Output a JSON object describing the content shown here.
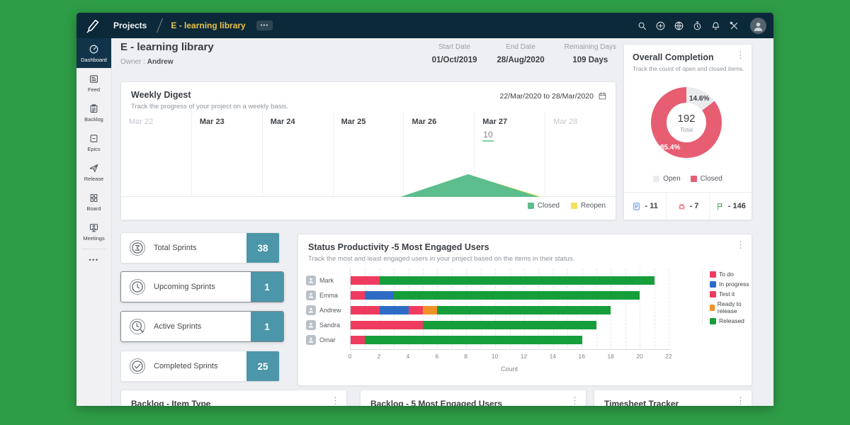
{
  "topbar": {
    "nav_app_label": "Projects",
    "project_name": "E - learning library",
    "more_label": "•••",
    "icons": [
      "search",
      "add",
      "globe",
      "timer",
      "bell",
      "tools"
    ]
  },
  "sidebar": {
    "items": [
      {
        "label": "Dashboard",
        "icon": "dashboard",
        "active": true
      },
      {
        "label": "Feed",
        "icon": "feed",
        "active": false
      },
      {
        "label": "Backlog",
        "icon": "backlog",
        "active": false
      },
      {
        "label": "Epics",
        "icon": "epics",
        "active": false
      },
      {
        "label": "Release",
        "icon": "release",
        "active": false
      },
      {
        "label": "Board",
        "icon": "board",
        "active": false
      },
      {
        "label": "Meetings",
        "icon": "meetings",
        "active": false
      }
    ],
    "more": "•••"
  },
  "project_header": {
    "title": "E - learning library",
    "owner_label": "Owner :",
    "owner": "Andrew",
    "start_date_label": "Start Date",
    "start_date": "01/Oct/2019",
    "end_date_label": "End Date",
    "end_date": "28/Aug/2020",
    "remaining_label": "Remaining Days",
    "remaining": "109 Days"
  },
  "weekly_digest": {
    "title": "Weekly Digest",
    "subtitle": "Track the progress of your project on a weekly basis.",
    "range": "22/Mar/2020 to 28/Mar/2020",
    "days": [
      {
        "label": "Mar 22",
        "muted": true,
        "value": ""
      },
      {
        "label": "Mar 23",
        "muted": false,
        "value": ""
      },
      {
        "label": "Mar 24",
        "muted": false,
        "value": ""
      },
      {
        "label": "Mar 25",
        "muted": false,
        "value": ""
      },
      {
        "label": "Mar 26",
        "muted": false,
        "value": ""
      },
      {
        "label": "Mar 27",
        "muted": false,
        "value": "10"
      },
      {
        "label": "Mar 28",
        "muted": true,
        "value": ""
      }
    ],
    "legend": [
      {
        "label": "Closed",
        "color": "#5cbd8d"
      },
      {
        "label": "Reopen",
        "color": "#efe15d"
      }
    ]
  },
  "overall_completion": {
    "title": "Overall Completion",
    "subtitle": "Track the count of open and closed items.",
    "total": "192",
    "total_label": "Total",
    "open_pct_label": "14.6%",
    "closed_pct_label": "85.4%",
    "legend": [
      {
        "label": "Open",
        "color": "#e9ebee"
      },
      {
        "label": "Closed",
        "color": "#e75d72"
      }
    ],
    "footer": [
      {
        "icon": "story",
        "text": "- 11",
        "color": "#5b8ad6"
      },
      {
        "icon": "bug",
        "text": "- 7",
        "color": "#e0525e"
      },
      {
        "icon": "flag",
        "text": "- 146",
        "color": "#43a34d"
      }
    ]
  },
  "sprints": {
    "accent": "#4b96a8",
    "cards": [
      {
        "label": "Total Sprints",
        "value": "38",
        "icon": "sigma",
        "selected": false
      },
      {
        "label": "Upcoming Sprints",
        "value": "1",
        "icon": "clock",
        "selected": true
      },
      {
        "label": "Active Sprints",
        "value": "1",
        "icon": "clockedit",
        "selected": true
      },
      {
        "label": "Completed Sprints",
        "value": "25",
        "icon": "check",
        "selected": false
      }
    ]
  },
  "status_productivity": {
    "title": "Status Productivity -5 Most Engaged Users",
    "subtitle": "Track the most and least engaged users in your project based on the items in their status."
  },
  "bottom_cards": [
    {
      "title": "Backlog - Item Type"
    },
    {
      "title": "Backlog - 5 Most Engaged Users"
    },
    {
      "title": "Timesheet Tracker"
    }
  ],
  "chart_data": [
    {
      "name": "weekly_digest",
      "type": "area",
      "title": "Weekly Digest",
      "x": [
        "Mar 22",
        "Mar 23",
        "Mar 24",
        "Mar 25",
        "Mar 26",
        "Mar 27",
        "Mar 28"
      ],
      "series": [
        {
          "name": "Closed",
          "color": "#5cbd8d",
          "values": [
            0,
            0,
            0,
            0,
            0,
            10,
            0
          ]
        },
        {
          "name": "Reopen",
          "color": "#efe15d",
          "values": [
            0,
            0,
            0,
            0,
            0,
            0,
            0
          ]
        }
      ],
      "legend_position": "bottom-right",
      "annotation": "10 closed on Mar 27"
    },
    {
      "name": "overall_completion",
      "type": "pie",
      "title": "Overall Completion",
      "labels": [
        "Open",
        "Closed"
      ],
      "values_pct": [
        14.6,
        85.4
      ],
      "colors": [
        "#e9ebee",
        "#e75d72"
      ],
      "center_total": 192,
      "center_label": "Total",
      "legend_position": "bottom"
    },
    {
      "name": "status_productivity",
      "type": "bar",
      "orientation": "horizontal",
      "stacked": true,
      "title": "Status Productivity -5 Most Engaged Users",
      "categories": [
        "Mark",
        "Emma",
        "Andrew",
        "Sandra",
        "Omar"
      ],
      "series": [
        {
          "name": "To do",
          "color": "#ef3b5f",
          "values": [
            2,
            1,
            2,
            4,
            1
          ]
        },
        {
          "name": "In progress",
          "color": "#2e6bc6",
          "values": [
            0,
            2,
            2,
            0,
            0
          ]
        },
        {
          "name": "Test it",
          "color": "#ef3b5f",
          "values": [
            0,
            0,
            1,
            1,
            0
          ]
        },
        {
          "name": "Ready to release",
          "color": "#ef9327",
          "values": [
            0,
            0,
            1,
            0,
            0
          ]
        },
        {
          "name": "Released",
          "color": "#169e3a",
          "values": [
            19,
            17,
            12,
            12,
            15
          ]
        }
      ],
      "xlabel": "Count",
      "xlim": [
        0,
        22
      ],
      "xtick_step": 2,
      "grid": true,
      "legend_position": "right"
    }
  ]
}
